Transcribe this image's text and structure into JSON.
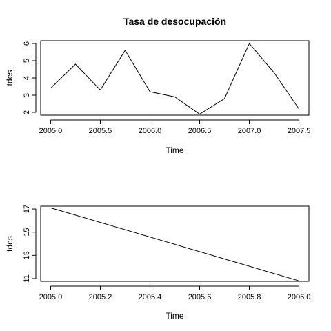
{
  "chart_data": [
    {
      "type": "line",
      "title": "Tasa de desocupación",
      "xlabel": "Time",
      "ylabel": "tdes",
      "xlim": [
        2005.0,
        2007.5
      ],
      "ylim": [
        2,
        6
      ],
      "x_ticks": [
        2005.0,
        2005.5,
        2006.0,
        2006.5,
        2007.0,
        2007.5
      ],
      "x_tick_labels": [
        "2005.0",
        "2005.5",
        "2006.0",
        "2006.5",
        "2007.0",
        "2007.5"
      ],
      "y_ticks": [
        2,
        3,
        4,
        5,
        6
      ],
      "y_tick_labels": [
        "2",
        "3",
        "4",
        "5",
        "6"
      ],
      "grid": false,
      "x": [
        2005.0,
        2005.25,
        2005.5,
        2005.75,
        2006.0,
        2006.25,
        2006.5,
        2006.75,
        2007.0,
        2007.25,
        2007.5
      ],
      "values": [
        3.4,
        4.8,
        3.3,
        5.6,
        3.2,
        2.9,
        1.9,
        2.8,
        6.0,
        4.3,
        2.2
      ]
    },
    {
      "type": "line",
      "title": "",
      "xlabel": "Time",
      "ylabel": "tdes",
      "xlim": [
        2005.0,
        2006.0
      ],
      "ylim": [
        11,
        17
      ],
      "x_ticks": [
        2005.0,
        2005.2,
        2005.4,
        2005.6,
        2005.8,
        2006.0
      ],
      "x_tick_labels": [
        "2005.0",
        "2005.2",
        "2005.4",
        "2005.6",
        "2005.8",
        "2006.0"
      ],
      "y_ticks": [
        11,
        13,
        15,
        17
      ],
      "y_tick_labels": [
        "11",
        "13",
        "15",
        "17"
      ],
      "grid": false,
      "x": [
        2005.0,
        2006.0
      ],
      "values": [
        17.1,
        10.8
      ]
    }
  ]
}
